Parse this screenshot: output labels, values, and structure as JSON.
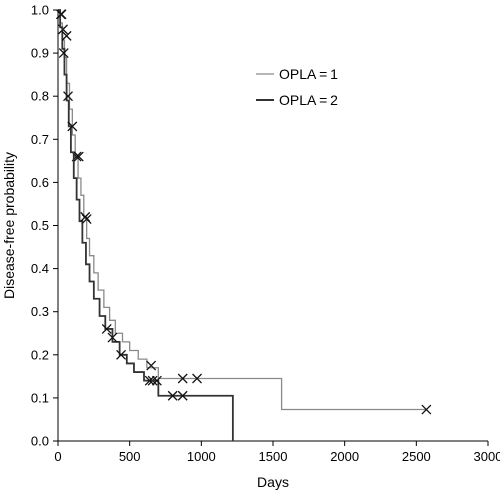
{
  "chart_data": {
    "type": "line",
    "xlabel": "Days",
    "ylabel": "Disease-free probability",
    "xlim": [
      0,
      3000
    ],
    "ylim": [
      0,
      1.0
    ],
    "x_ticks": [
      0,
      500,
      1000,
      1500,
      2000,
      2500,
      3000
    ],
    "y_ticks": [
      0.0,
      0.1,
      0.2,
      0.3,
      0.4,
      0.5,
      0.6,
      0.7,
      0.8,
      0.9,
      1.0
    ],
    "x_tick_labels": [
      "0",
      "500",
      "1000",
      "1500",
      "2000",
      "2500",
      "3000"
    ],
    "y_tick_labels": [
      "0.0",
      "0.1",
      "0.2",
      "0.3",
      "0.4",
      "0.5",
      "0.6",
      "0.7",
      "0.8",
      "0.9",
      "1.0"
    ],
    "grid": false,
    "legend_position": "top-right",
    "series": [
      {
        "name": "OPLA = 1",
        "color": "#8a8a8a",
        "style": "step",
        "x": [
          0,
          15,
          30,
          45,
          60,
          80,
          100,
          120,
          140,
          160,
          180,
          200,
          220,
          250,
          280,
          320,
          360,
          400,
          450,
          500,
          560,
          620,
          700,
          1000,
          1560,
          2570
        ],
        "y": [
          1.0,
          0.97,
          0.93,
          0.89,
          0.83,
          0.77,
          0.71,
          0.66,
          0.61,
          0.57,
          0.52,
          0.47,
          0.43,
          0.39,
          0.35,
          0.31,
          0.28,
          0.25,
          0.23,
          0.21,
          0.19,
          0.17,
          0.145,
          0.145,
          0.073,
          0.073
        ],
        "censored": [
          {
            "x": 20,
            "y": 0.99
          },
          {
            "x": 35,
            "y": 0.955
          },
          {
            "x": 130,
            "y": 0.66
          },
          {
            "x": 650,
            "y": 0.175
          },
          {
            "x": 660,
            "y": 0.14
          },
          {
            "x": 870,
            "y": 0.145
          },
          {
            "x": 970,
            "y": 0.145
          },
          {
            "x": 2570,
            "y": 0.073
          }
        ]
      },
      {
        "name": "OPLA = 2",
        "color": "#333333",
        "style": "step",
        "x": [
          0,
          15,
          30,
          45,
          60,
          75,
          90,
          110,
          130,
          150,
          170,
          195,
          220,
          250,
          290,
          330,
          380,
          430,
          480,
          530,
          600,
          700,
          1220
        ],
        "y": [
          1.0,
          0.96,
          0.91,
          0.85,
          0.79,
          0.73,
          0.67,
          0.61,
          0.56,
          0.51,
          0.46,
          0.41,
          0.37,
          0.33,
          0.29,
          0.26,
          0.23,
          0.2,
          0.18,
          0.16,
          0.14,
          0.105,
          0.0
        ],
        "censored": [
          {
            "x": 25,
            "y": 0.99
          },
          {
            "x": 40,
            "y": 0.9
          },
          {
            "x": 60,
            "y": 0.94
          },
          {
            "x": 70,
            "y": 0.8
          },
          {
            "x": 100,
            "y": 0.73
          },
          {
            "x": 145,
            "y": 0.66
          },
          {
            "x": 190,
            "y": 0.52
          },
          {
            "x": 200,
            "y": 0.515
          },
          {
            "x": 340,
            "y": 0.26
          },
          {
            "x": 380,
            "y": 0.24
          },
          {
            "x": 440,
            "y": 0.2
          },
          {
            "x": 640,
            "y": 0.14
          },
          {
            "x": 690,
            "y": 0.14
          },
          {
            "x": 800,
            "y": 0.105
          },
          {
            "x": 870,
            "y": 0.105
          }
        ]
      }
    ]
  }
}
